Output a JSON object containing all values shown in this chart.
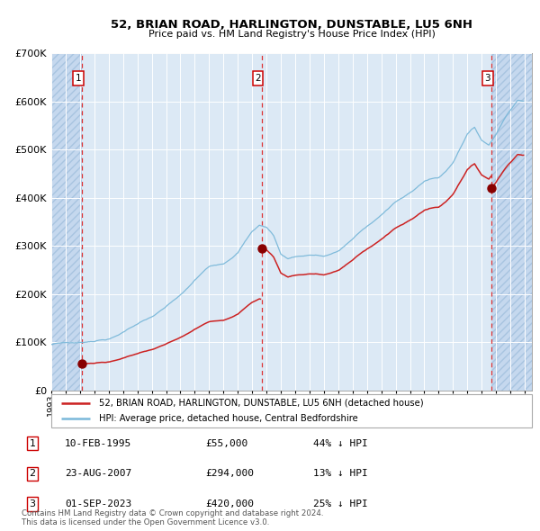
{
  "title": "52, BRIAN ROAD, HARLINGTON, DUNSTABLE, LU5 6NH",
  "subtitle": "Price paid vs. HM Land Registry's House Price Index (HPI)",
  "legend_line1": "52, BRIAN ROAD, HARLINGTON, DUNSTABLE, LU5 6NH (detached house)",
  "legend_line2": "HPI: Average price, detached house, Central Bedfordshire",
  "sale_points": [
    {
      "label": "1",
      "date": 1995.11,
      "price": 55000,
      "note": "10-FEB-1995",
      "pct": "44% ↓ HPI"
    },
    {
      "label": "2",
      "date": 2007.65,
      "price": 294000,
      "note": "23-AUG-2007",
      "pct": "13% ↓ HPI"
    },
    {
      "label": "3",
      "date": 2023.67,
      "price": 420000,
      "note": "01-SEP-2023",
      "pct": "25% ↓ HPI"
    }
  ],
  "table_rows": [
    [
      "1",
      "10-FEB-1995",
      "£55,000",
      "44% ↓ HPI"
    ],
    [
      "2",
      "23-AUG-2007",
      "£294,000",
      "13% ↓ HPI"
    ],
    [
      "3",
      "01-SEP-2023",
      "£420,000",
      "25% ↓ HPI"
    ]
  ],
  "footer": "Contains HM Land Registry data © Crown copyright and database right 2024.\nThis data is licensed under the Open Government Licence v3.0.",
  "hpi_color": "#7ab8d9",
  "price_color": "#cc2222",
  "sale_dot_color": "#880000",
  "dashed_color": "#dd3333",
  "bg_color": "#dce9f5",
  "grid_color": "#ffffff",
  "hatch_bg_color": "#c5d8ee",
  "ylim": [
    0,
    700000
  ],
  "xlim_start": 1993.0,
  "xlim_end": 2026.5,
  "hatch_left_end": 1995.11,
  "hatch_right_start": 2023.67
}
